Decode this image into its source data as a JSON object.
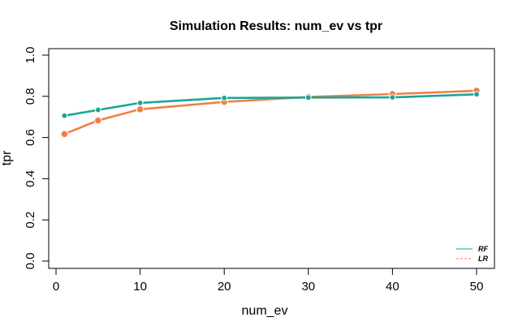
{
  "chart_data": {
    "type": "line",
    "title": "Simulation Results: num_ev vs tpr",
    "xlabel": "num_ev",
    "ylabel": "tpr",
    "xlim": [
      0,
      50
    ],
    "ylim": [
      0,
      1
    ],
    "x_ticks": [
      0,
      10,
      20,
      30,
      40,
      50
    ],
    "y_ticks": [
      0.0,
      0.2,
      0.4,
      0.6,
      0.8,
      1.0
    ],
    "x_tick_labels": [
      "0",
      "10",
      "20",
      "30",
      "40",
      "50"
    ],
    "y_tick_labels": [
      "0.0",
      "0.2",
      "0.4",
      "0.6",
      "0.8",
      "1.0"
    ],
    "x": [
      1,
      5,
      10,
      20,
      30,
      40,
      50
    ],
    "series": [
      {
        "name": "RF",
        "color": "#1aa595",
        "values": [
          0.706,
          0.734,
          0.768,
          0.792,
          0.794,
          0.795,
          0.81
        ]
      },
      {
        "name": "LR",
        "color": "#f27f48",
        "values": [
          0.617,
          0.683,
          0.737,
          0.773,
          0.797,
          0.811,
          0.827
        ]
      }
    ],
    "grid": false,
    "legend_position": "bottom-right"
  }
}
